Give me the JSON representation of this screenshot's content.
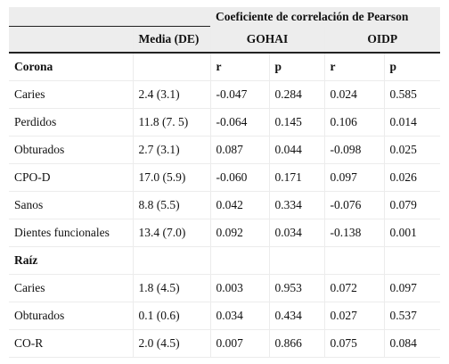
{
  "table": {
    "group_header": "Coeficiente de correlación de Pearson",
    "col_media": "Media (DE)",
    "col_gohai": "GOHAI",
    "col_oidp": "OIDP",
    "sections": [
      {
        "title": "Corona",
        "sub_headers": [
          "r",
          "p",
          "r",
          "p"
        ],
        "rows": [
          {
            "label": "Caries",
            "media": "2.4 (3.1)",
            "gohai_r": "-0.047",
            "gohai_p": "0.284",
            "oidp_r": "0.024",
            "oidp_p": "0.585"
          },
          {
            "label": "Perdidos",
            "media": "11.8 (7. 5)",
            "gohai_r": "-0.064",
            "gohai_p": "0.145",
            "oidp_r": "0.106",
            "oidp_p": "0.014"
          },
          {
            "label": "Obturados",
            "media": "2.7 (3.1)",
            "gohai_r": "0.087",
            "gohai_p": "0.044",
            "oidp_r": "-0.098",
            "oidp_p": "0.025"
          },
          {
            "label": "CPO-D",
            "media": "17.0 (5.9)",
            "gohai_r": "-0.060",
            "gohai_p": "0.171",
            "oidp_r": "0.097",
            "oidp_p": "0.026"
          },
          {
            "label": "Sanos",
            "media": "8.8 (5.5)",
            "gohai_r": "0.042",
            "gohai_p": "0.334",
            "oidp_r": "-0.076",
            "oidp_p": "0.079"
          },
          {
            "label": "Dientes funcionales",
            "media": "13.4 (7.0)",
            "gohai_r": "0.092",
            "gohai_p": "0.034",
            "oidp_r": "-0.138",
            "oidp_p": "0.001"
          }
        ]
      },
      {
        "title": "Raíz",
        "rows": [
          {
            "label": "Caries",
            "media": "1.8 (4.5)",
            "gohai_r": "0.003",
            "gohai_p": "0.953",
            "oidp_r": "0.072",
            "oidp_p": "0.097"
          },
          {
            "label": "Obturados",
            "media": "0.1 (0.6)",
            "gohai_r": "0.034",
            "gohai_p": "0.434",
            "oidp_r": "0.027",
            "oidp_p": "0.537"
          },
          {
            "label": "CO-R",
            "media": "2.0 (4.5)",
            "gohai_r": "0.007",
            "gohai_p": "0.866",
            "oidp_r": "0.075",
            "oidp_p": "0.084"
          }
        ]
      }
    ]
  }
}
